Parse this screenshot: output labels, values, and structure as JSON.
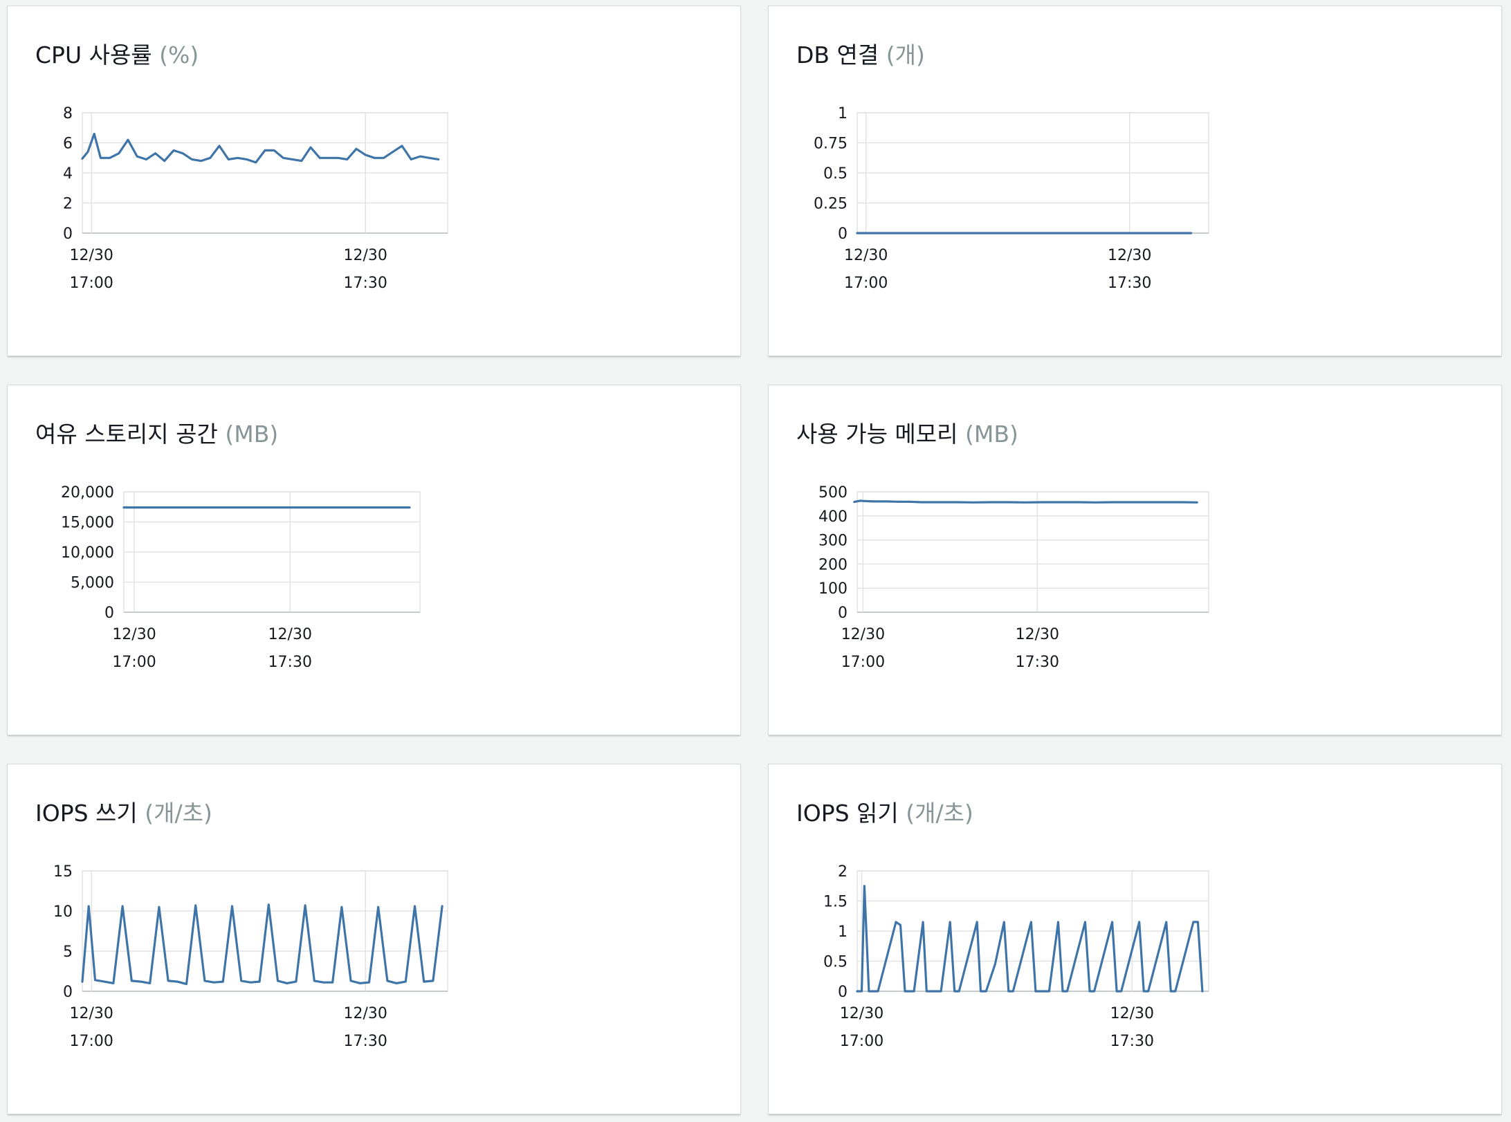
{
  "colors": {
    "series": "#3f74a8",
    "grid": "#e3e3e3",
    "axis": "#b9bdbd",
    "unit": "#879596"
  },
  "panels": [
    {
      "title": "CPU 사용률",
      "unit": "(%)"
    },
    {
      "title": "DB 연결",
      "unit": "(개)"
    },
    {
      "title": "여유 스토리지 공간",
      "unit": "(MB)"
    },
    {
      "title": "사용 가능 메모리",
      "unit": "(MB)"
    },
    {
      "title": "IOPS 쓰기",
      "unit": "(개/초)"
    },
    {
      "title": "IOPS 읽기",
      "unit": "(개/초)"
    }
  ],
  "chart_data": [
    {
      "type": "line",
      "title": "CPU 사용률 (%)",
      "ylim": [
        0,
        8
      ],
      "yticks": [
        "0",
        "2",
        "4",
        "6",
        "8"
      ],
      "xlim": [
        -1,
        39
      ],
      "xticks": [
        {
          "x": 0,
          "date": "12/30",
          "time": "17:00"
        },
        {
          "x": 30,
          "date": "12/30",
          "time": "17:30"
        }
      ],
      "grid": true,
      "series": [
        {
          "x": [
            -1,
            -0.4,
            0.3,
            1,
            2,
            3,
            4,
            5,
            6,
            7,
            8,
            9,
            10,
            11,
            12,
            13,
            14,
            15,
            16,
            17,
            18,
            19,
            20,
            21,
            22,
            23,
            24,
            25,
            26,
            27,
            28,
            29,
            30,
            31,
            32,
            33,
            34,
            35,
            36,
            37,
            38
          ],
          "values": [
            4.95,
            5.4,
            6.6,
            5.0,
            5.0,
            5.3,
            6.2,
            5.1,
            4.9,
            5.3,
            4.8,
            5.5,
            5.3,
            4.9,
            4.8,
            5.0,
            5.8,
            4.9,
            5.0,
            4.9,
            4.7,
            5.5,
            5.5,
            5.0,
            4.9,
            4.8,
            5.7,
            5.0,
            5.0,
            5.0,
            4.9,
            5.6,
            5.2,
            5.0,
            5.0,
            5.4,
            5.8,
            4.9,
            5.1,
            5.0,
            4.9
          ]
        }
      ]
    },
    {
      "type": "line",
      "title": "DB 연결 (개)",
      "ylim": [
        0,
        1
      ],
      "yticks": [
        "0",
        "0.25",
        "0.5",
        "0.75",
        "1"
      ],
      "xlim": [
        -1,
        39
      ],
      "xticks": [
        {
          "x": 0,
          "date": "12/30",
          "time": "17:00"
        },
        {
          "x": 30,
          "date": "12/30",
          "time": "17:30"
        }
      ],
      "grid": true,
      "series": [
        {
          "x": [
            -1,
            37
          ],
          "values": [
            0,
            0
          ]
        }
      ]
    },
    {
      "type": "line",
      "title": "여유 스토리지 공간 (MB)",
      "ylim": [
        0,
        20000
      ],
      "yticks": [
        "0",
        "5,000",
        "10,000",
        "15,000",
        "20,000"
      ],
      "xlim": [
        -2,
        55
      ],
      "xticks": [
        {
          "x": 0,
          "date": "12/30",
          "time": "17:00"
        },
        {
          "x": 30,
          "date": "12/30",
          "time": "17:30"
        }
      ],
      "grid": true,
      "series": [
        {
          "x": [
            -2,
            53
          ],
          "values": [
            17400,
            17400
          ]
        }
      ]
    },
    {
      "type": "line",
      "title": "사용 가능 메모리 (MB)",
      "ylim": [
        0,
        500
      ],
      "yticks": [
        "0",
        "100",
        "200",
        "300",
        "400",
        "500"
      ],
      "xlim": [
        -1,
        59.5
      ],
      "xticks": [
        {
          "x": 0,
          "date": "12/30",
          "time": "17:00"
        },
        {
          "x": 30,
          "date": "12/30",
          "time": "17:30"
        }
      ],
      "grid": true,
      "series": [
        {
          "x": [
            -1.5,
            -0.5,
            0,
            1,
            2,
            4,
            6,
            8,
            10,
            13,
            16,
            19,
            22,
            25,
            28,
            31,
            34,
            37,
            40,
            43,
            46,
            49,
            52,
            55,
            57.5
          ],
          "values": [
            458,
            463,
            462,
            461,
            460,
            460,
            459,
            459,
            457,
            457,
            457,
            456,
            457,
            457,
            456,
            457,
            457,
            457,
            456,
            457,
            457,
            457,
            457,
            457,
            456
          ]
        }
      ]
    },
    {
      "type": "line",
      "title": "IOPS 쓰기 (개/초)",
      "ylim": [
        0,
        15
      ],
      "yticks": [
        "0",
        "5",
        "10",
        "15"
      ],
      "xlim": [
        -1,
        39
      ],
      "xticks": [
        {
          "x": 0,
          "date": "12/30",
          "time": "17:00"
        },
        {
          "x": 30,
          "date": "12/30",
          "time": "17:30"
        }
      ],
      "grid": true,
      "series": [
        {
          "x": [
            -1,
            -0.3,
            0.4,
            1.4,
            2.4,
            3.4,
            4.4,
            5.4,
            6.4,
            7.4,
            8.4,
            9.4,
            10.4,
            11.4,
            12.4,
            13.4,
            14.4,
            15.4,
            16.4,
            17.4,
            18.4,
            19.4,
            20.4,
            21.4,
            22.4,
            23.4,
            24.4,
            25.4,
            26.4,
            27.4,
            28.4,
            29.4,
            30.4,
            31.4,
            32.4,
            33.4,
            34.4,
            35.4,
            36.4,
            37.4,
            38.4
          ],
          "values": [
            1.2,
            10.6,
            1.4,
            1.2,
            1.0,
            10.6,
            1.3,
            1.2,
            1.0,
            10.5,
            1.3,
            1.2,
            0.9,
            10.7,
            1.3,
            1.1,
            1.2,
            10.6,
            1.3,
            1.1,
            1.2,
            10.8,
            1.3,
            1.0,
            1.2,
            10.7,
            1.3,
            1.1,
            1.1,
            10.5,
            1.3,
            1.0,
            1.1,
            10.5,
            1.3,
            1.0,
            1.2,
            10.6,
            1.2,
            1.3,
            10.6
          ]
        }
      ]
    },
    {
      "type": "line",
      "title": "IOPS 읽기 (개/초)",
      "ylim": [
        0,
        2
      ],
      "yticks": [
        "0",
        "0.5",
        "1",
        "1.5",
        "2"
      ],
      "xlim": [
        -0.5,
        38.5
      ],
      "xticks": [
        {
          "x": 0,
          "date": "12/30",
          "time": "17:00"
        },
        {
          "x": 30,
          "date": "12/30",
          "time": "17:30"
        }
      ],
      "grid": true,
      "series": [
        {
          "x": [
            -0.5,
            0,
            0.3,
            0.8,
            1.8,
            3.8,
            4.3,
            4.8,
            5.8,
            6.8,
            7.2,
            7.8,
            8.8,
            9.8,
            10.3,
            10.8,
            12.8,
            13.2,
            13.8,
            14.8,
            15.8,
            16.3,
            16.8,
            18.8,
            19.3,
            19.8,
            20.8,
            21.8,
            22.3,
            22.8,
            24.8,
            25.3,
            25.8,
            27.8,
            28.3,
            28.8,
            30.8,
            31.3,
            31.8,
            33.8,
            34.3,
            34.8,
            36.8,
            37.3,
            37.8
          ],
          "values": [
            0,
            0,
            1.75,
            0,
            0,
            1.15,
            1.1,
            0,
            0,
            1.15,
            0,
            0,
            0,
            1.15,
            0,
            0,
            1.15,
            0,
            0,
            0.45,
            1.15,
            0,
            0,
            1.15,
            0,
            0,
            0,
            1.15,
            0,
            0,
            1.15,
            0,
            0,
            1.15,
            0,
            0,
            1.15,
            0,
            0,
            1.15,
            0,
            0,
            1.15,
            1.15,
            0
          ]
        }
      ]
    }
  ]
}
